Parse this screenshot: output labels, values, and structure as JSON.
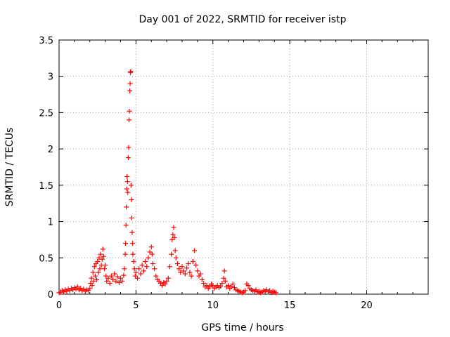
{
  "chart_data": {
    "type": "scatter",
    "title": "Day 001 of 2022, SRMTID for receiver istp",
    "xlabel": "GPS time / hours",
    "ylabel": "SRMTID / TECUs",
    "xlim": [
      0,
      24
    ],
    "ylim": [
      0,
      3.5
    ],
    "xticks": [
      0,
      5,
      10,
      15,
      20
    ],
    "xtick_labels": [
      "0",
      "5",
      "10",
      "15",
      "20"
    ],
    "yticks": [
      0,
      0.5,
      1,
      1.5,
      2,
      2.5,
      3,
      3.5
    ],
    "ytick_labels": [
      "0",
      "0.5",
      "1",
      "1.5",
      "2",
      "2.5",
      "3",
      "3.5"
    ],
    "grid": true,
    "marker": "+",
    "color": "#ff0000",
    "series": [
      {
        "name": "SRMTID",
        "points": [
          [
            0.0,
            0.02
          ],
          [
            0.1,
            0.03
          ],
          [
            0.2,
            0.05
          ],
          [
            0.3,
            0.03
          ],
          [
            0.4,
            0.06
          ],
          [
            0.5,
            0.04
          ],
          [
            0.6,
            0.07
          ],
          [
            0.7,
            0.05
          ],
          [
            0.8,
            0.08
          ],
          [
            0.9,
            0.06
          ],
          [
            1.0,
            0.09
          ],
          [
            1.1,
            0.07
          ],
          [
            1.2,
            0.1
          ],
          [
            1.3,
            0.06
          ],
          [
            1.4,
            0.08
          ],
          [
            1.5,
            0.05
          ],
          [
            1.6,
            0.07
          ],
          [
            1.7,
            0.04
          ],
          [
            1.8,
            0.06
          ],
          [
            1.9,
            0.05
          ],
          [
            2.0,
            0.08
          ],
          [
            2.05,
            0.15
          ],
          [
            2.1,
            0.22
          ],
          [
            2.15,
            0.12
          ],
          [
            2.2,
            0.3
          ],
          [
            2.25,
            0.18
          ],
          [
            2.3,
            0.38
          ],
          [
            2.35,
            0.25
          ],
          [
            2.4,
            0.42
          ],
          [
            2.45,
            0.2
          ],
          [
            2.5,
            0.45
          ],
          [
            2.55,
            0.3
          ],
          [
            2.6,
            0.5
          ],
          [
            2.65,
            0.35
          ],
          [
            2.7,
            0.55
          ],
          [
            2.75,
            0.4
          ],
          [
            2.8,
            0.48
          ],
          [
            2.85,
            0.62
          ],
          [
            2.9,
            0.52
          ],
          [
            2.95,
            0.35
          ],
          [
            3.0,
            0.4
          ],
          [
            3.05,
            0.25
          ],
          [
            3.1,
            0.18
          ],
          [
            3.2,
            0.22
          ],
          [
            3.3,
            0.15
          ],
          [
            3.4,
            0.25
          ],
          [
            3.5,
            0.2
          ],
          [
            3.6,
            0.28
          ],
          [
            3.7,
            0.18
          ],
          [
            3.8,
            0.24
          ],
          [
            3.9,
            0.16
          ],
          [
            4.0,
            0.22
          ],
          [
            4.1,
            0.18
          ],
          [
            4.2,
            0.26
          ],
          [
            4.25,
            0.35
          ],
          [
            4.3,
            0.55
          ],
          [
            4.32,
            0.7
          ],
          [
            4.35,
            0.95
          ],
          [
            4.37,
            1.2
          ],
          [
            4.4,
            1.45
          ],
          [
            4.42,
            1.62
          ],
          [
            4.45,
            1.55
          ],
          [
            4.47,
            1.4
          ],
          [
            4.5,
            1.88
          ],
          [
            4.52,
            2.02
          ],
          [
            4.55,
            2.4
          ],
          [
            4.57,
            2.52
          ],
          [
            4.6,
            2.8
          ],
          [
            4.62,
            2.9
          ],
          [
            4.64,
            3.05
          ],
          [
            4.66,
            3.07
          ],
          [
            4.68,
            1.5
          ],
          [
            4.7,
            1.3
          ],
          [
            4.72,
            1.05
          ],
          [
            4.75,
            0.85
          ],
          [
            4.78,
            0.7
          ],
          [
            4.8,
            0.55
          ],
          [
            4.85,
            0.45
          ],
          [
            4.9,
            0.35
          ],
          [
            4.95,
            0.25
          ],
          [
            5.0,
            0.3
          ],
          [
            5.1,
            0.22
          ],
          [
            5.2,
            0.35
          ],
          [
            5.3,
            0.28
          ],
          [
            5.4,
            0.4
          ],
          [
            5.5,
            0.32
          ],
          [
            5.6,
            0.45
          ],
          [
            5.7,
            0.38
          ],
          [
            5.8,
            0.5
          ],
          [
            5.9,
            0.58
          ],
          [
            6.0,
            0.65
          ],
          [
            6.05,
            0.55
          ],
          [
            6.1,
            0.42
          ],
          [
            6.2,
            0.35
          ],
          [
            6.3,
            0.25
          ],
          [
            6.4,
            0.2
          ],
          [
            6.5,
            0.18
          ],
          [
            6.6,
            0.15
          ],
          [
            6.7,
            0.12
          ],
          [
            6.8,
            0.16
          ],
          [
            6.9,
            0.14
          ],
          [
            7.0,
            0.18
          ],
          [
            7.1,
            0.22
          ],
          [
            7.2,
            0.38
          ],
          [
            7.3,
            0.55
          ],
          [
            7.35,
            0.75
          ],
          [
            7.4,
            0.82
          ],
          [
            7.45,
            0.92
          ],
          [
            7.5,
            0.78
          ],
          [
            7.55,
            0.6
          ],
          [
            7.6,
            0.5
          ],
          [
            7.7,
            0.42
          ],
          [
            7.8,
            0.35
          ],
          [
            7.9,
            0.3
          ],
          [
            8.0,
            0.38
          ],
          [
            8.1,
            0.32
          ],
          [
            8.2,
            0.28
          ],
          [
            8.3,
            0.36
          ],
          [
            8.4,
            0.42
          ],
          [
            8.5,
            0.3
          ],
          [
            8.6,
            0.25
          ],
          [
            8.7,
            0.45
          ],
          [
            8.8,
            0.6
          ],
          [
            8.9,
            0.4
          ],
          [
            9.0,
            0.32
          ],
          [
            9.1,
            0.25
          ],
          [
            9.2,
            0.28
          ],
          [
            9.3,
            0.2
          ],
          [
            9.4,
            0.15
          ],
          [
            9.5,
            0.1
          ],
          [
            9.6,
            0.12
          ],
          [
            9.7,
            0.08
          ],
          [
            9.8,
            0.1
          ],
          [
            9.9,
            0.14
          ],
          [
            10.0,
            0.12
          ],
          [
            10.1,
            0.08
          ],
          [
            10.2,
            0.1
          ],
          [
            10.3,
            0.12
          ],
          [
            10.4,
            0.09
          ],
          [
            10.5,
            0.11
          ],
          [
            10.6,
            0.15
          ],
          [
            10.7,
            0.22
          ],
          [
            10.75,
            0.32
          ],
          [
            10.8,
            0.18
          ],
          [
            10.9,
            0.1
          ],
          [
            11.0,
            0.12
          ],
          [
            11.1,
            0.08
          ],
          [
            11.2,
            0.1
          ],
          [
            11.3,
            0.14
          ],
          [
            11.4,
            0.09
          ],
          [
            11.5,
            0.06
          ],
          [
            11.6,
            0.05
          ],
          [
            11.7,
            0.04
          ],
          [
            11.8,
            0.03
          ],
          [
            11.9,
            0.02
          ],
          [
            12.0,
            0.03
          ],
          [
            12.1,
            0.05
          ],
          [
            12.2,
            0.14
          ],
          [
            12.3,
            0.12
          ],
          [
            12.4,
            0.08
          ],
          [
            12.5,
            0.06
          ],
          [
            12.6,
            0.05
          ],
          [
            12.7,
            0.04
          ],
          [
            12.8,
            0.06
          ],
          [
            12.9,
            0.03
          ],
          [
            13.0,
            0.04
          ],
          [
            13.1,
            0.02
          ],
          [
            13.2,
            0.03
          ],
          [
            13.3,
            0.05
          ],
          [
            13.4,
            0.04
          ],
          [
            13.5,
            0.06
          ],
          [
            13.6,
            0.03
          ],
          [
            13.7,
            0.05
          ],
          [
            13.8,
            0.02
          ],
          [
            13.9,
            0.04
          ],
          [
            14.0,
            0.03
          ],
          [
            14.1,
            0.02
          ]
        ]
      }
    ]
  }
}
